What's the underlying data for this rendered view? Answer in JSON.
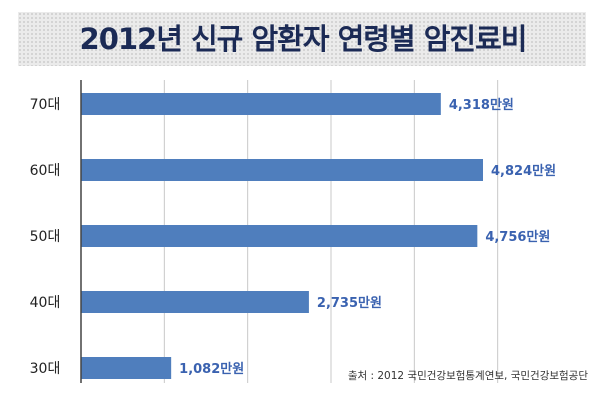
{
  "title": "2012년 신규 암환자 연령별 암진료비",
  "source": "출처 : 2012 국민건강보험통계연보, 국민건강보험공단",
  "colors": {
    "bar": "#4f7ebd",
    "label": "#3a62b0",
    "grid": "#c8c8c8",
    "axis": "#444444"
  },
  "chart_data": {
    "type": "bar",
    "orientation": "horizontal",
    "categories": [
      "70대",
      "60대",
      "50대",
      "40대",
      "30대"
    ],
    "values": [
      4318,
      4824,
      4756,
      2735,
      1082
    ],
    "data_labels": [
      "4,318만원",
      "4,824만원",
      "4,756만원",
      "2,735만원",
      "1,082만원"
    ],
    "xlim": [
      0,
      6000
    ],
    "gridlines": [
      1000,
      2000,
      3000,
      4000,
      5000
    ],
    "grid": true,
    "legend": false
  }
}
